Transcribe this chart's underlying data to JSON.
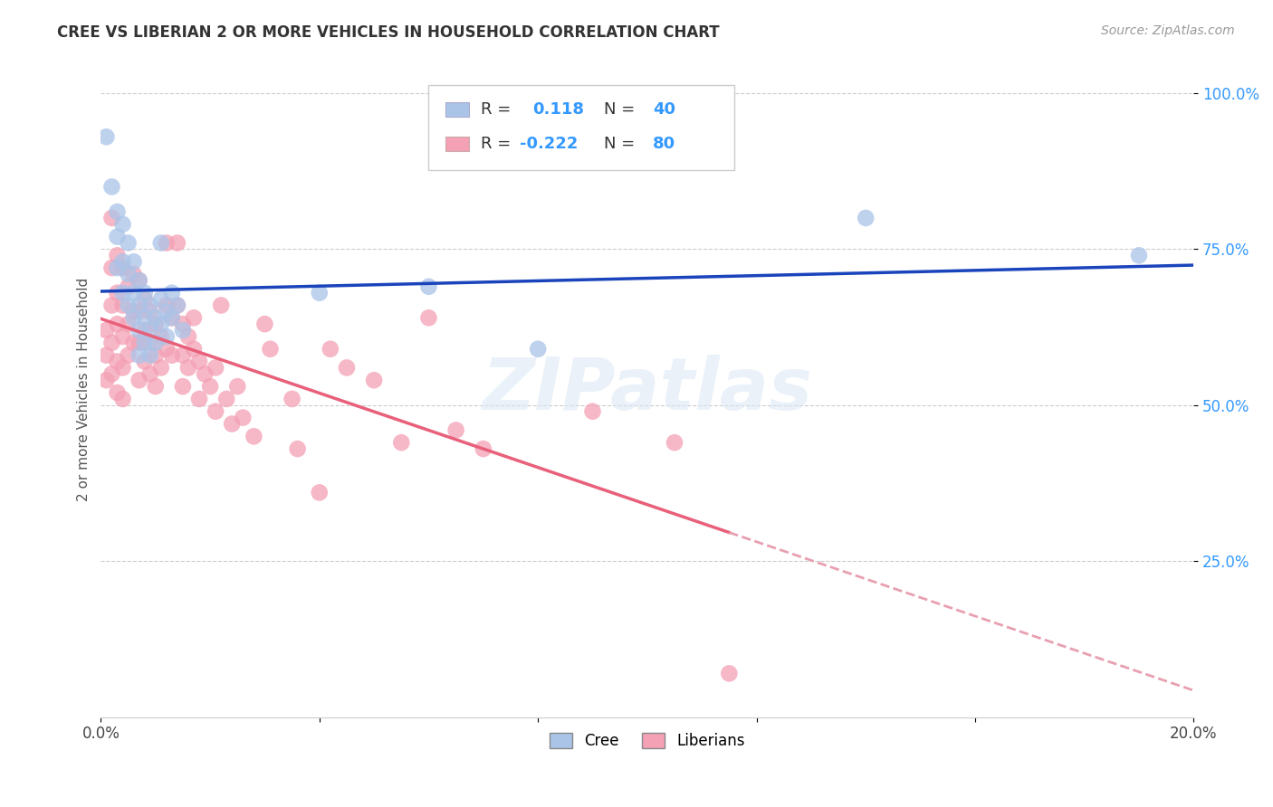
{
  "title": "CREE VS LIBERIAN 2 OR MORE VEHICLES IN HOUSEHOLD CORRELATION CHART",
  "source": "Source: ZipAtlas.com",
  "ylabel": "2 or more Vehicles in Household",
  "xmin": 0.0,
  "xmax": 0.2,
  "ymin": 0.0,
  "ymax": 1.05,
  "cree_color": "#aac4e8",
  "liberian_color": "#f4a0b5",
  "cree_line_color": "#1a44bb",
  "liberian_line_color": "#e8607a",
  "liberian_line_dashed_color": "#e8a0b0",
  "watermark": "ZIPatlas",
  "cree_points": [
    [
      0.001,
      0.93
    ],
    [
      0.002,
      0.85
    ],
    [
      0.003,
      0.81
    ],
    [
      0.003,
      0.77
    ],
    [
      0.003,
      0.72
    ],
    [
      0.004,
      0.79
    ],
    [
      0.004,
      0.73
    ],
    [
      0.004,
      0.68
    ],
    [
      0.005,
      0.76
    ],
    [
      0.005,
      0.71
    ],
    [
      0.005,
      0.66
    ],
    [
      0.006,
      0.73
    ],
    [
      0.006,
      0.68
    ],
    [
      0.006,
      0.64
    ],
    [
      0.007,
      0.7
    ],
    [
      0.007,
      0.66
    ],
    [
      0.007,
      0.62
    ],
    [
      0.007,
      0.58
    ],
    [
      0.008,
      0.68
    ],
    [
      0.008,
      0.64
    ],
    [
      0.008,
      0.6
    ],
    [
      0.009,
      0.66
    ],
    [
      0.009,
      0.62
    ],
    [
      0.009,
      0.58
    ],
    [
      0.01,
      0.64
    ],
    [
      0.01,
      0.6
    ],
    [
      0.011,
      0.76
    ],
    [
      0.011,
      0.67
    ],
    [
      0.011,
      0.63
    ],
    [
      0.012,
      0.65
    ],
    [
      0.012,
      0.61
    ],
    [
      0.013,
      0.68
    ],
    [
      0.013,
      0.64
    ],
    [
      0.014,
      0.66
    ],
    [
      0.015,
      0.62
    ],
    [
      0.04,
      0.68
    ],
    [
      0.06,
      0.69
    ],
    [
      0.08,
      0.59
    ],
    [
      0.14,
      0.8
    ],
    [
      0.19,
      0.74
    ]
  ],
  "liberian_points": [
    [
      0.001,
      0.62
    ],
    [
      0.001,
      0.58
    ],
    [
      0.001,
      0.54
    ],
    [
      0.002,
      0.8
    ],
    [
      0.002,
      0.72
    ],
    [
      0.002,
      0.66
    ],
    [
      0.002,
      0.6
    ],
    [
      0.002,
      0.55
    ],
    [
      0.003,
      0.74
    ],
    [
      0.003,
      0.68
    ],
    [
      0.003,
      0.63
    ],
    [
      0.003,
      0.57
    ],
    [
      0.003,
      0.52
    ],
    [
      0.004,
      0.72
    ],
    [
      0.004,
      0.66
    ],
    [
      0.004,
      0.61
    ],
    [
      0.004,
      0.56
    ],
    [
      0.004,
      0.51
    ],
    [
      0.005,
      0.69
    ],
    [
      0.005,
      0.63
    ],
    [
      0.005,
      0.58
    ],
    [
      0.006,
      0.71
    ],
    [
      0.006,
      0.65
    ],
    [
      0.006,
      0.6
    ],
    [
      0.007,
      0.7
    ],
    [
      0.007,
      0.65
    ],
    [
      0.007,
      0.6
    ],
    [
      0.007,
      0.54
    ],
    [
      0.008,
      0.67
    ],
    [
      0.008,
      0.62
    ],
    [
      0.008,
      0.57
    ],
    [
      0.009,
      0.65
    ],
    [
      0.009,
      0.6
    ],
    [
      0.009,
      0.55
    ],
    [
      0.01,
      0.63
    ],
    [
      0.01,
      0.58
    ],
    [
      0.01,
      0.53
    ],
    [
      0.011,
      0.61
    ],
    [
      0.011,
      0.56
    ],
    [
      0.012,
      0.76
    ],
    [
      0.012,
      0.66
    ],
    [
      0.012,
      0.59
    ],
    [
      0.013,
      0.64
    ],
    [
      0.013,
      0.58
    ],
    [
      0.014,
      0.76
    ],
    [
      0.014,
      0.66
    ],
    [
      0.015,
      0.63
    ],
    [
      0.015,
      0.58
    ],
    [
      0.015,
      0.53
    ],
    [
      0.016,
      0.61
    ],
    [
      0.016,
      0.56
    ],
    [
      0.017,
      0.64
    ],
    [
      0.017,
      0.59
    ],
    [
      0.018,
      0.57
    ],
    [
      0.018,
      0.51
    ],
    [
      0.019,
      0.55
    ],
    [
      0.02,
      0.53
    ],
    [
      0.021,
      0.56
    ],
    [
      0.021,
      0.49
    ],
    [
      0.022,
      0.66
    ],
    [
      0.023,
      0.51
    ],
    [
      0.024,
      0.47
    ],
    [
      0.025,
      0.53
    ],
    [
      0.026,
      0.48
    ],
    [
      0.028,
      0.45
    ],
    [
      0.03,
      0.63
    ],
    [
      0.031,
      0.59
    ],
    [
      0.035,
      0.51
    ],
    [
      0.036,
      0.43
    ],
    [
      0.04,
      0.36
    ],
    [
      0.042,
      0.59
    ],
    [
      0.045,
      0.56
    ],
    [
      0.05,
      0.54
    ],
    [
      0.055,
      0.44
    ],
    [
      0.06,
      0.64
    ],
    [
      0.065,
      0.46
    ],
    [
      0.07,
      0.43
    ],
    [
      0.09,
      0.49
    ],
    [
      0.105,
      0.44
    ],
    [
      0.115,
      0.07
    ]
  ]
}
